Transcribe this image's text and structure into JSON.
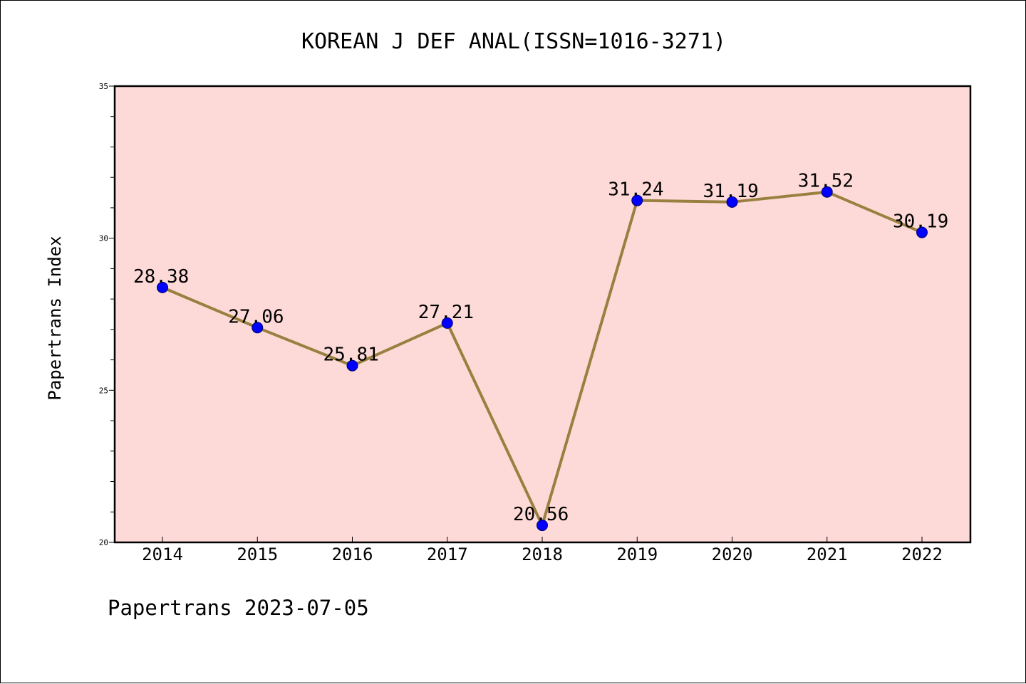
{
  "chart_data": {
    "type": "line",
    "title": "KOREAN J DEF ANAL(ISSN=1016-3271)",
    "xlabel": "",
    "ylabel": "Papertrans Index",
    "categories": [
      "2014",
      "2015",
      "2016",
      "2017",
      "2018",
      "2019",
      "2020",
      "2021",
      "2022"
    ],
    "series": [
      {
        "values": [
          28.38,
          27.06,
          25.81,
          27.21,
          20.56,
          31.24,
          31.19,
          31.52,
          30.19
        ],
        "labels": [
          "28.38",
          "27.06",
          "25.81",
          "27.21",
          "20.56",
          "31.24",
          "31.19",
          "31.52",
          "30.19"
        ]
      }
    ],
    "ylim": [
      20,
      35
    ],
    "yticks": [
      "20",
      "25",
      "30",
      "35"
    ],
    "grid": false,
    "legend": "none",
    "colors": {
      "plot_background": "#fddad7",
      "line": "#9a8040",
      "marker_fill": "#0000ff",
      "marker_edge": "#00006a",
      "frame": "#000000"
    }
  },
  "footer": {
    "source_label": "Papertrans 2023-07-05"
  }
}
